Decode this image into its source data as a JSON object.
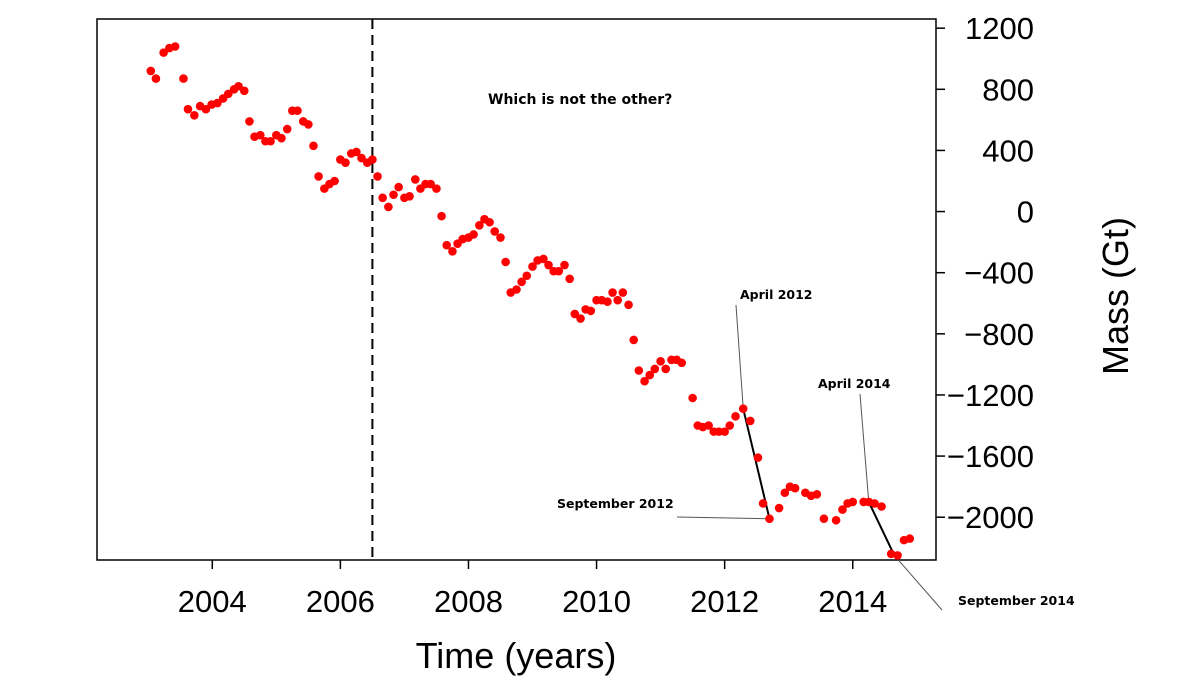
{
  "chart_data": {
    "type": "scatter",
    "title": "",
    "annotation_text": "Which is not the other?",
    "xlabel": "Time (years)",
    "ylabel": "Mass (Gt)",
    "xlim": [
      2002.2,
      2015.3
    ],
    "ylim": [
      -2280,
      1260
    ],
    "x_ticks": [
      2004,
      2006,
      2008,
      2010,
      2012,
      2014
    ],
    "x_tick_labels": [
      "2004",
      "2006",
      "2008",
      "2010",
      "2012",
      "2014"
    ],
    "y_ticks": [
      1200,
      800,
      400,
      0,
      -400,
      -800,
      -1200,
      -1600,
      -2000
    ],
    "y_tick_labels": [
      "1200",
      "800",
      "400",
      "0",
      "−400",
      "−800",
      "−1200",
      "−1600",
      "−2000"
    ],
    "y_axis_side": "right",
    "marker_color": "#ff0000",
    "vline": {
      "x": 2006.5,
      "style": "dashed"
    },
    "points": [
      [
        2003.04,
        920
      ],
      [
        2003.12,
        870
      ],
      [
        2003.24,
        1040
      ],
      [
        2003.33,
        1070
      ],
      [
        2003.42,
        1080
      ],
      [
        2003.55,
        870
      ],
      [
        2003.62,
        670
      ],
      [
        2003.72,
        630
      ],
      [
        2003.81,
        690
      ],
      [
        2003.9,
        670
      ],
      [
        2003.99,
        700
      ],
      [
        2004.08,
        710
      ],
      [
        2004.17,
        740
      ],
      [
        2004.25,
        770
      ],
      [
        2004.34,
        800
      ],
      [
        2004.41,
        820
      ],
      [
        2004.5,
        790
      ],
      [
        2004.58,
        590
      ],
      [
        2004.66,
        490
      ],
      [
        2004.75,
        500
      ],
      [
        2004.83,
        460
      ],
      [
        2004.91,
        460
      ],
      [
        2005.0,
        500
      ],
      [
        2005.08,
        480
      ],
      [
        2005.17,
        540
      ],
      [
        2005.25,
        660
      ],
      [
        2005.33,
        660
      ],
      [
        2005.42,
        590
      ],
      [
        2005.5,
        570
      ],
      [
        2005.58,
        430
      ],
      [
        2005.66,
        230
      ],
      [
        2005.75,
        150
      ],
      [
        2005.83,
        180
      ],
      [
        2005.91,
        200
      ],
      [
        2006.0,
        340
      ],
      [
        2006.08,
        320
      ],
      [
        2006.17,
        380
      ],
      [
        2006.25,
        390
      ],
      [
        2006.33,
        350
      ],
      [
        2006.42,
        320
      ],
      [
        2006.5,
        340
      ],
      [
        2006.58,
        230
      ],
      [
        2006.66,
        90
      ],
      [
        2006.75,
        30
      ],
      [
        2006.83,
        110
      ],
      [
        2006.91,
        160
      ],
      [
        2007.0,
        90
      ],
      [
        2007.08,
        100
      ],
      [
        2007.17,
        210
      ],
      [
        2007.25,
        150
      ],
      [
        2007.33,
        180
      ],
      [
        2007.41,
        180
      ],
      [
        2007.5,
        150
      ],
      [
        2007.58,
        -30
      ],
      [
        2007.66,
        -220
      ],
      [
        2007.75,
        -260
      ],
      [
        2007.83,
        -210
      ],
      [
        2007.91,
        -180
      ],
      [
        2008.0,
        -170
      ],
      [
        2008.08,
        -150
      ],
      [
        2008.17,
        -90
      ],
      [
        2008.25,
        -50
      ],
      [
        2008.33,
        -70
      ],
      [
        2008.41,
        -130
      ],
      [
        2008.5,
        -170
      ],
      [
        2008.58,
        -330
      ],
      [
        2008.66,
        -530
      ],
      [
        2008.75,
        -510
      ],
      [
        2008.83,
        -460
      ],
      [
        2008.91,
        -420
      ],
      [
        2009.0,
        -360
      ],
      [
        2009.08,
        -320
      ],
      [
        2009.17,
        -310
      ],
      [
        2009.25,
        -350
      ],
      [
        2009.33,
        -390
      ],
      [
        2009.41,
        -390
      ],
      [
        2009.5,
        -350
      ],
      [
        2009.58,
        -440
      ],
      [
        2009.66,
        -670
      ],
      [
        2009.75,
        -700
      ],
      [
        2009.83,
        -640
      ],
      [
        2009.91,
        -650
      ],
      [
        2010.0,
        -580
      ],
      [
        2010.08,
        -580
      ],
      [
        2010.17,
        -590
      ],
      [
        2010.25,
        -530
      ],
      [
        2010.33,
        -580
      ],
      [
        2010.41,
        -530
      ],
      [
        2010.5,
        -610
      ],
      [
        2010.58,
        -840
      ],
      [
        2010.66,
        -1040
      ],
      [
        2010.75,
        -1110
      ],
      [
        2010.83,
        -1070
      ],
      [
        2010.91,
        -1030
      ],
      [
        2011.0,
        -980
      ],
      [
        2011.08,
        -1030
      ],
      [
        2011.17,
        -970
      ],
      [
        2011.25,
        -970
      ],
      [
        2011.33,
        -990
      ],
      [
        2011.5,
        -1220
      ],
      [
        2011.58,
        -1400
      ],
      [
        2011.66,
        -1410
      ],
      [
        2011.75,
        -1400
      ],
      [
        2011.83,
        -1440
      ],
      [
        2011.91,
        -1440
      ],
      [
        2012.0,
        -1440
      ],
      [
        2012.08,
        -1400
      ],
      [
        2012.17,
        -1340
      ],
      [
        2012.29,
        -1290
      ],
      [
        2012.4,
        -1370
      ],
      [
        2012.52,
        -1610
      ],
      [
        2012.6,
        -1910
      ],
      [
        2012.7,
        -2010
      ],
      [
        2012.85,
        -1940
      ],
      [
        2012.94,
        -1840
      ],
      [
        2013.02,
        -1800
      ],
      [
        2013.1,
        -1810
      ],
      [
        2013.26,
        -1840
      ],
      [
        2013.35,
        -1860
      ],
      [
        2013.44,
        -1850
      ],
      [
        2013.55,
        -2010
      ],
      [
        2013.74,
        -2020
      ],
      [
        2013.84,
        -1950
      ],
      [
        2013.92,
        -1910
      ],
      [
        2014.0,
        -1900
      ],
      [
        2014.17,
        -1900
      ],
      [
        2014.25,
        -1900
      ],
      [
        2014.34,
        -1910
      ],
      [
        2014.45,
        -1930
      ],
      [
        2014.6,
        -2240
      ],
      [
        2014.7,
        -2250
      ],
      [
        2014.8,
        -2150
      ],
      [
        2014.89,
        -2140
      ]
    ],
    "segments": [
      {
        "from": [
          2012.29,
          -1290
        ],
        "to": [
          2012.7,
          -2010
        ]
      },
      {
        "from": [
          2014.25,
          -1900
        ],
        "to": [
          2014.65,
          -2250
        ]
      }
    ],
    "labels": [
      {
        "text": "April 2012",
        "x": 2012.29,
        "y": -1290
      },
      {
        "text": "September 2012",
        "x": 2012.7,
        "y": -2010
      },
      {
        "text": "April 2014",
        "x": 2014.25,
        "y": -1900
      },
      {
        "text": "September 2014",
        "x": 2014.65,
        "y": -2250
      }
    ]
  }
}
